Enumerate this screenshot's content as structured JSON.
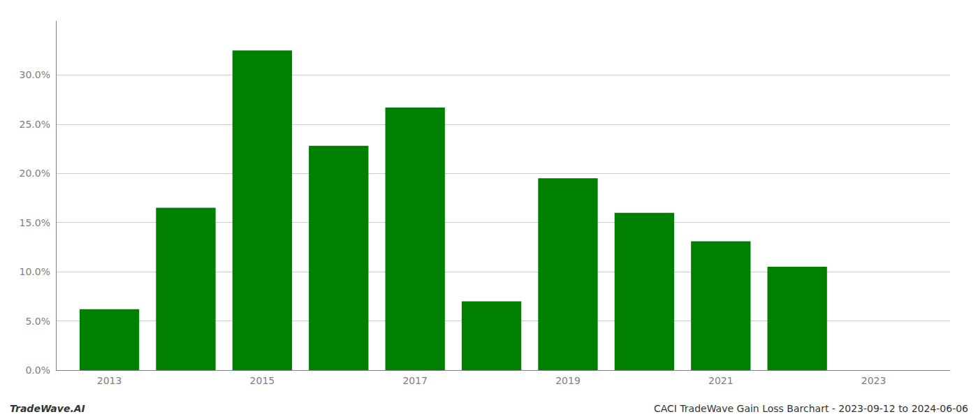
{
  "chart_data": {
    "type": "bar",
    "x": [
      2013,
      2014,
      2015,
      2016,
      2017,
      2018,
      2019,
      2020,
      2021,
      2022
    ],
    "values": [
      0.062,
      0.165,
      0.325,
      0.228,
      0.267,
      0.07,
      0.195,
      0.16,
      0.131,
      0.105
    ],
    "color": "#008000",
    "xlim": [
      2012.3,
      2024.0
    ],
    "xticks": [
      2013,
      2015,
      2017,
      2019,
      2021,
      2023
    ],
    "ylim": [
      0,
      0.355
    ],
    "yticks": [
      {
        "value": 0.0,
        "label": "0.0%"
      },
      {
        "value": 0.05,
        "label": "5.0%"
      },
      {
        "value": 0.1,
        "label": "10.0%"
      },
      {
        "value": 0.15,
        "label": "15.0%"
      },
      {
        "value": 0.2,
        "label": "20.0%"
      },
      {
        "value": 0.25,
        "label": "25.0%"
      },
      {
        "value": 0.3,
        "label": "30.0%"
      }
    ],
    "grid": true,
    "annotations": [
      "TradeWave.AI",
      "CACI TradeWave Gain Loss Barchart - 2023-09-12 to 2024-06-06"
    ]
  }
}
